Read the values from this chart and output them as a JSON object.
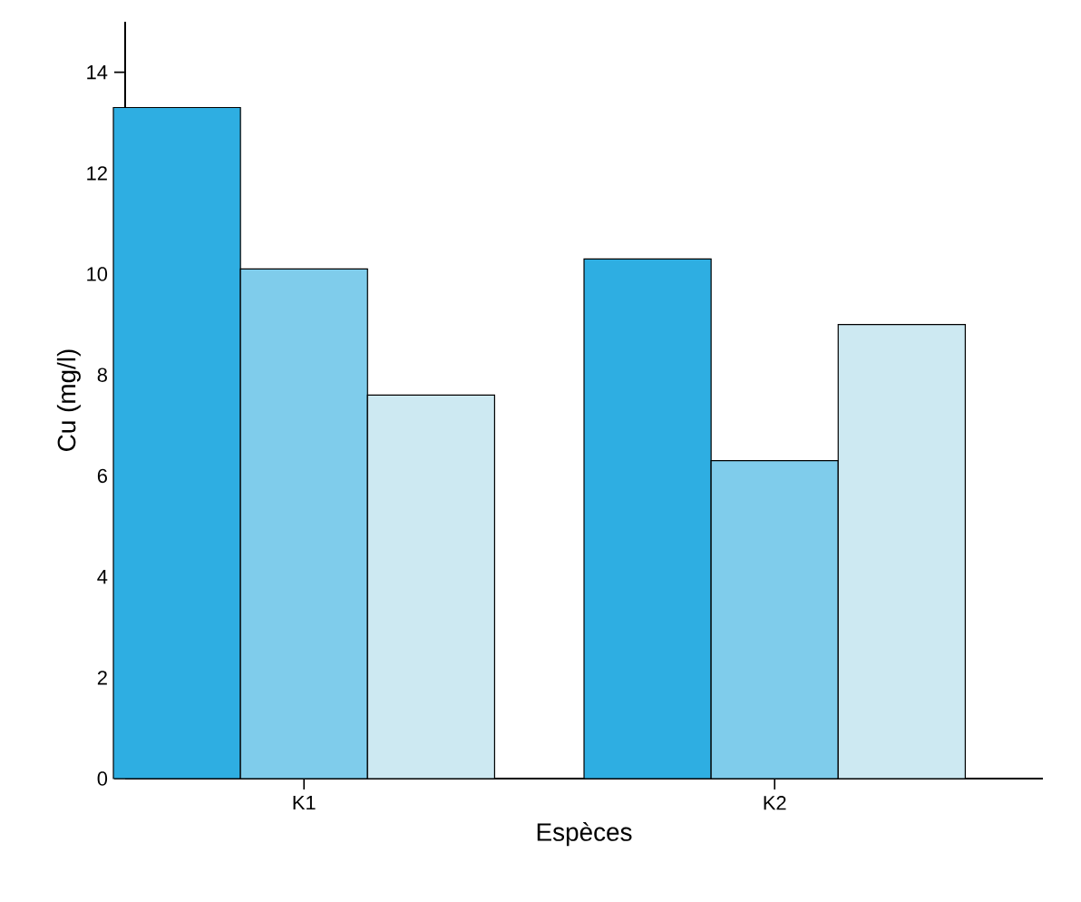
{
  "chart_data": {
    "type": "bar",
    "xlabel": "Espèces",
    "ylabel": "Cu (mg/l)",
    "categories": [
      "K1",
      "K2"
    ],
    "series": [
      {
        "color": "#2eaee2",
        "values": [
          13.3,
          10.3
        ]
      },
      {
        "color": "#7fcceb",
        "values": [
          10.1,
          6.3
        ]
      },
      {
        "color": "#cde9f2",
        "values": [
          7.6,
          9.0
        ]
      }
    ],
    "ylim": [
      0,
      15
    ],
    "yticks": [
      0,
      2,
      4,
      6,
      8,
      10,
      12,
      14
    ]
  }
}
